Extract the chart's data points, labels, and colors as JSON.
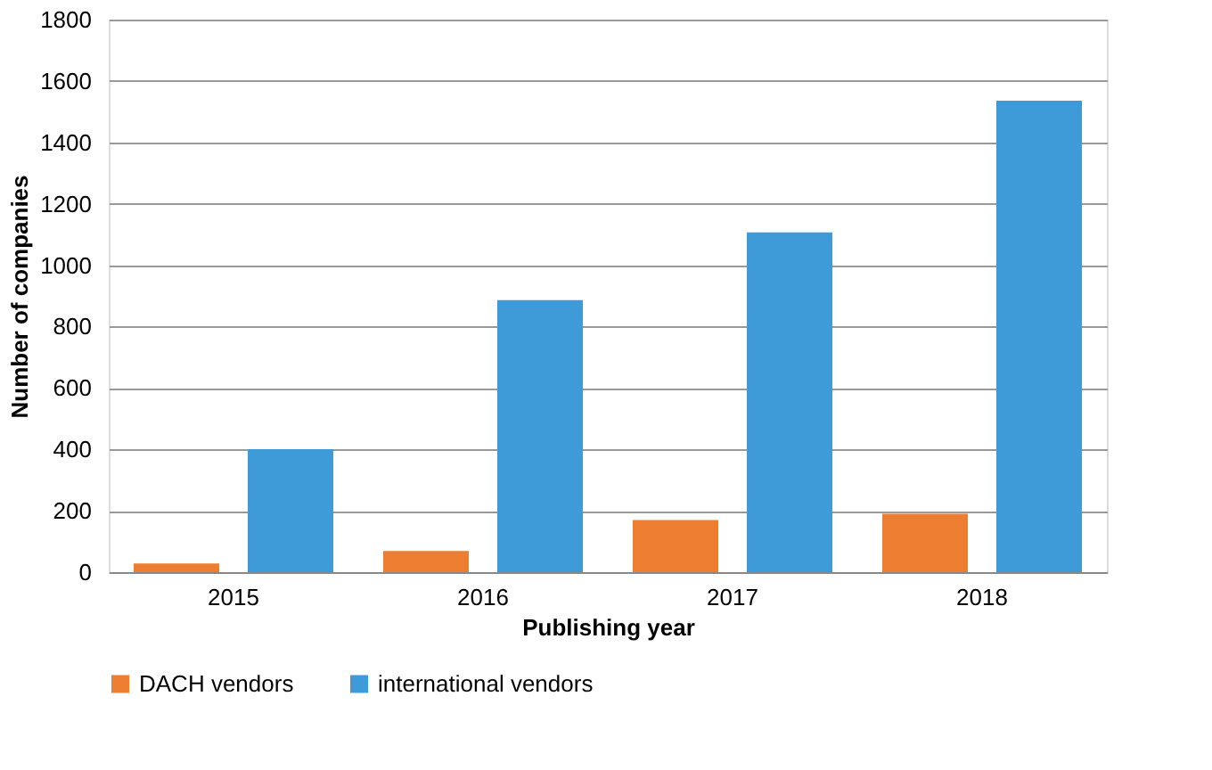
{
  "chart_data": {
    "type": "bar",
    "xlabel": "Publishing year",
    "ylabel": "Number of companies",
    "categories": [
      "2015",
      "2016",
      "2017",
      "2018"
    ],
    "series": [
      {
        "name": "DACH vendors",
        "color": "#ed7d31",
        "values": [
          28,
          69,
          170,
          190
        ]
      },
      {
        "name": "international vendors",
        "color": "#3e9bd8",
        "values": [
          401,
          886,
          1107,
          1536
        ]
      }
    ],
    "ylim": [
      0,
      1800
    ],
    "yticks": [
      0,
      200,
      400,
      600,
      800,
      1000,
      1200,
      1400,
      1600,
      1800
    ],
    "grid": "y",
    "legend": "bottom"
  }
}
